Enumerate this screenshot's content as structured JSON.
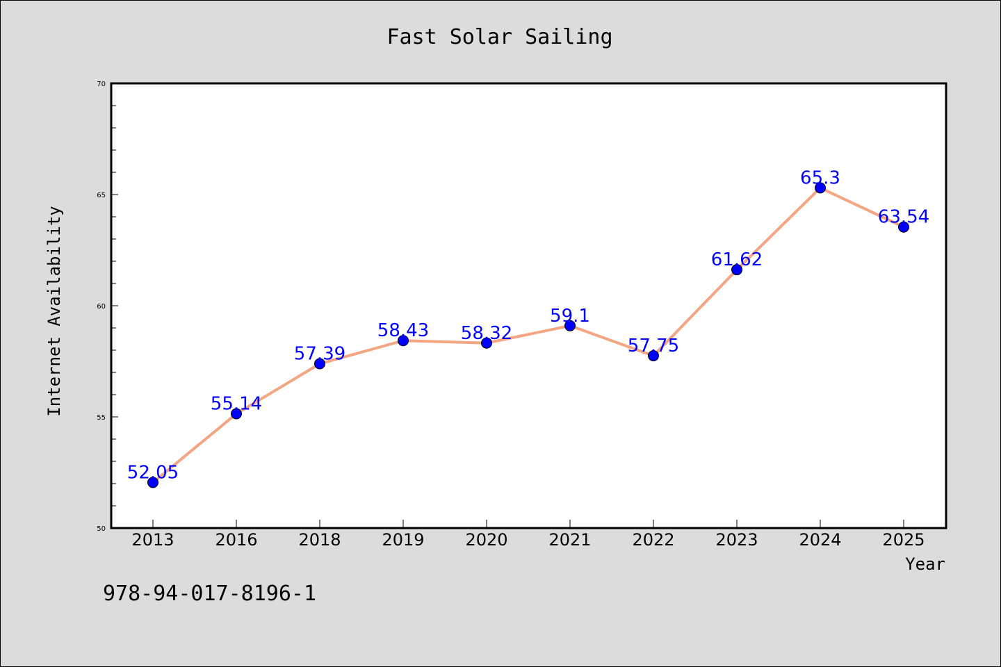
{
  "colors": {
    "background": "#dcdcdc",
    "plot_background": "#ffffff",
    "line": "#f4a582",
    "marker": "#0000ff",
    "data_label": "#0000ff"
  },
  "footer_text": "978-94-017-8196-1",
  "chart_data": {
    "type": "line",
    "title": "Fast Solar Sailing",
    "xlabel": "Year",
    "ylabel": "Internet Availability",
    "categories": [
      "2013",
      "2016",
      "2018",
      "2019",
      "2020",
      "2021",
      "2022",
      "2023",
      "2024",
      "2025"
    ],
    "series": [
      {
        "values": [
          52.05,
          55.14,
          57.39,
          58.43,
          58.32,
          59.1,
          57.75,
          61.62,
          65.3,
          63.54
        ],
        "labels": [
          "52.05",
          "55.14",
          "57.39",
          "58.43",
          "58.32",
          "59.1",
          "57.75",
          "61.62",
          "65.3",
          "63.54"
        ]
      }
    ],
    "ylim": [
      50,
      70
    ],
    "yticks": [
      "50",
      "55",
      "60",
      "65",
      "70"
    ],
    "grid": false,
    "legend": false
  }
}
